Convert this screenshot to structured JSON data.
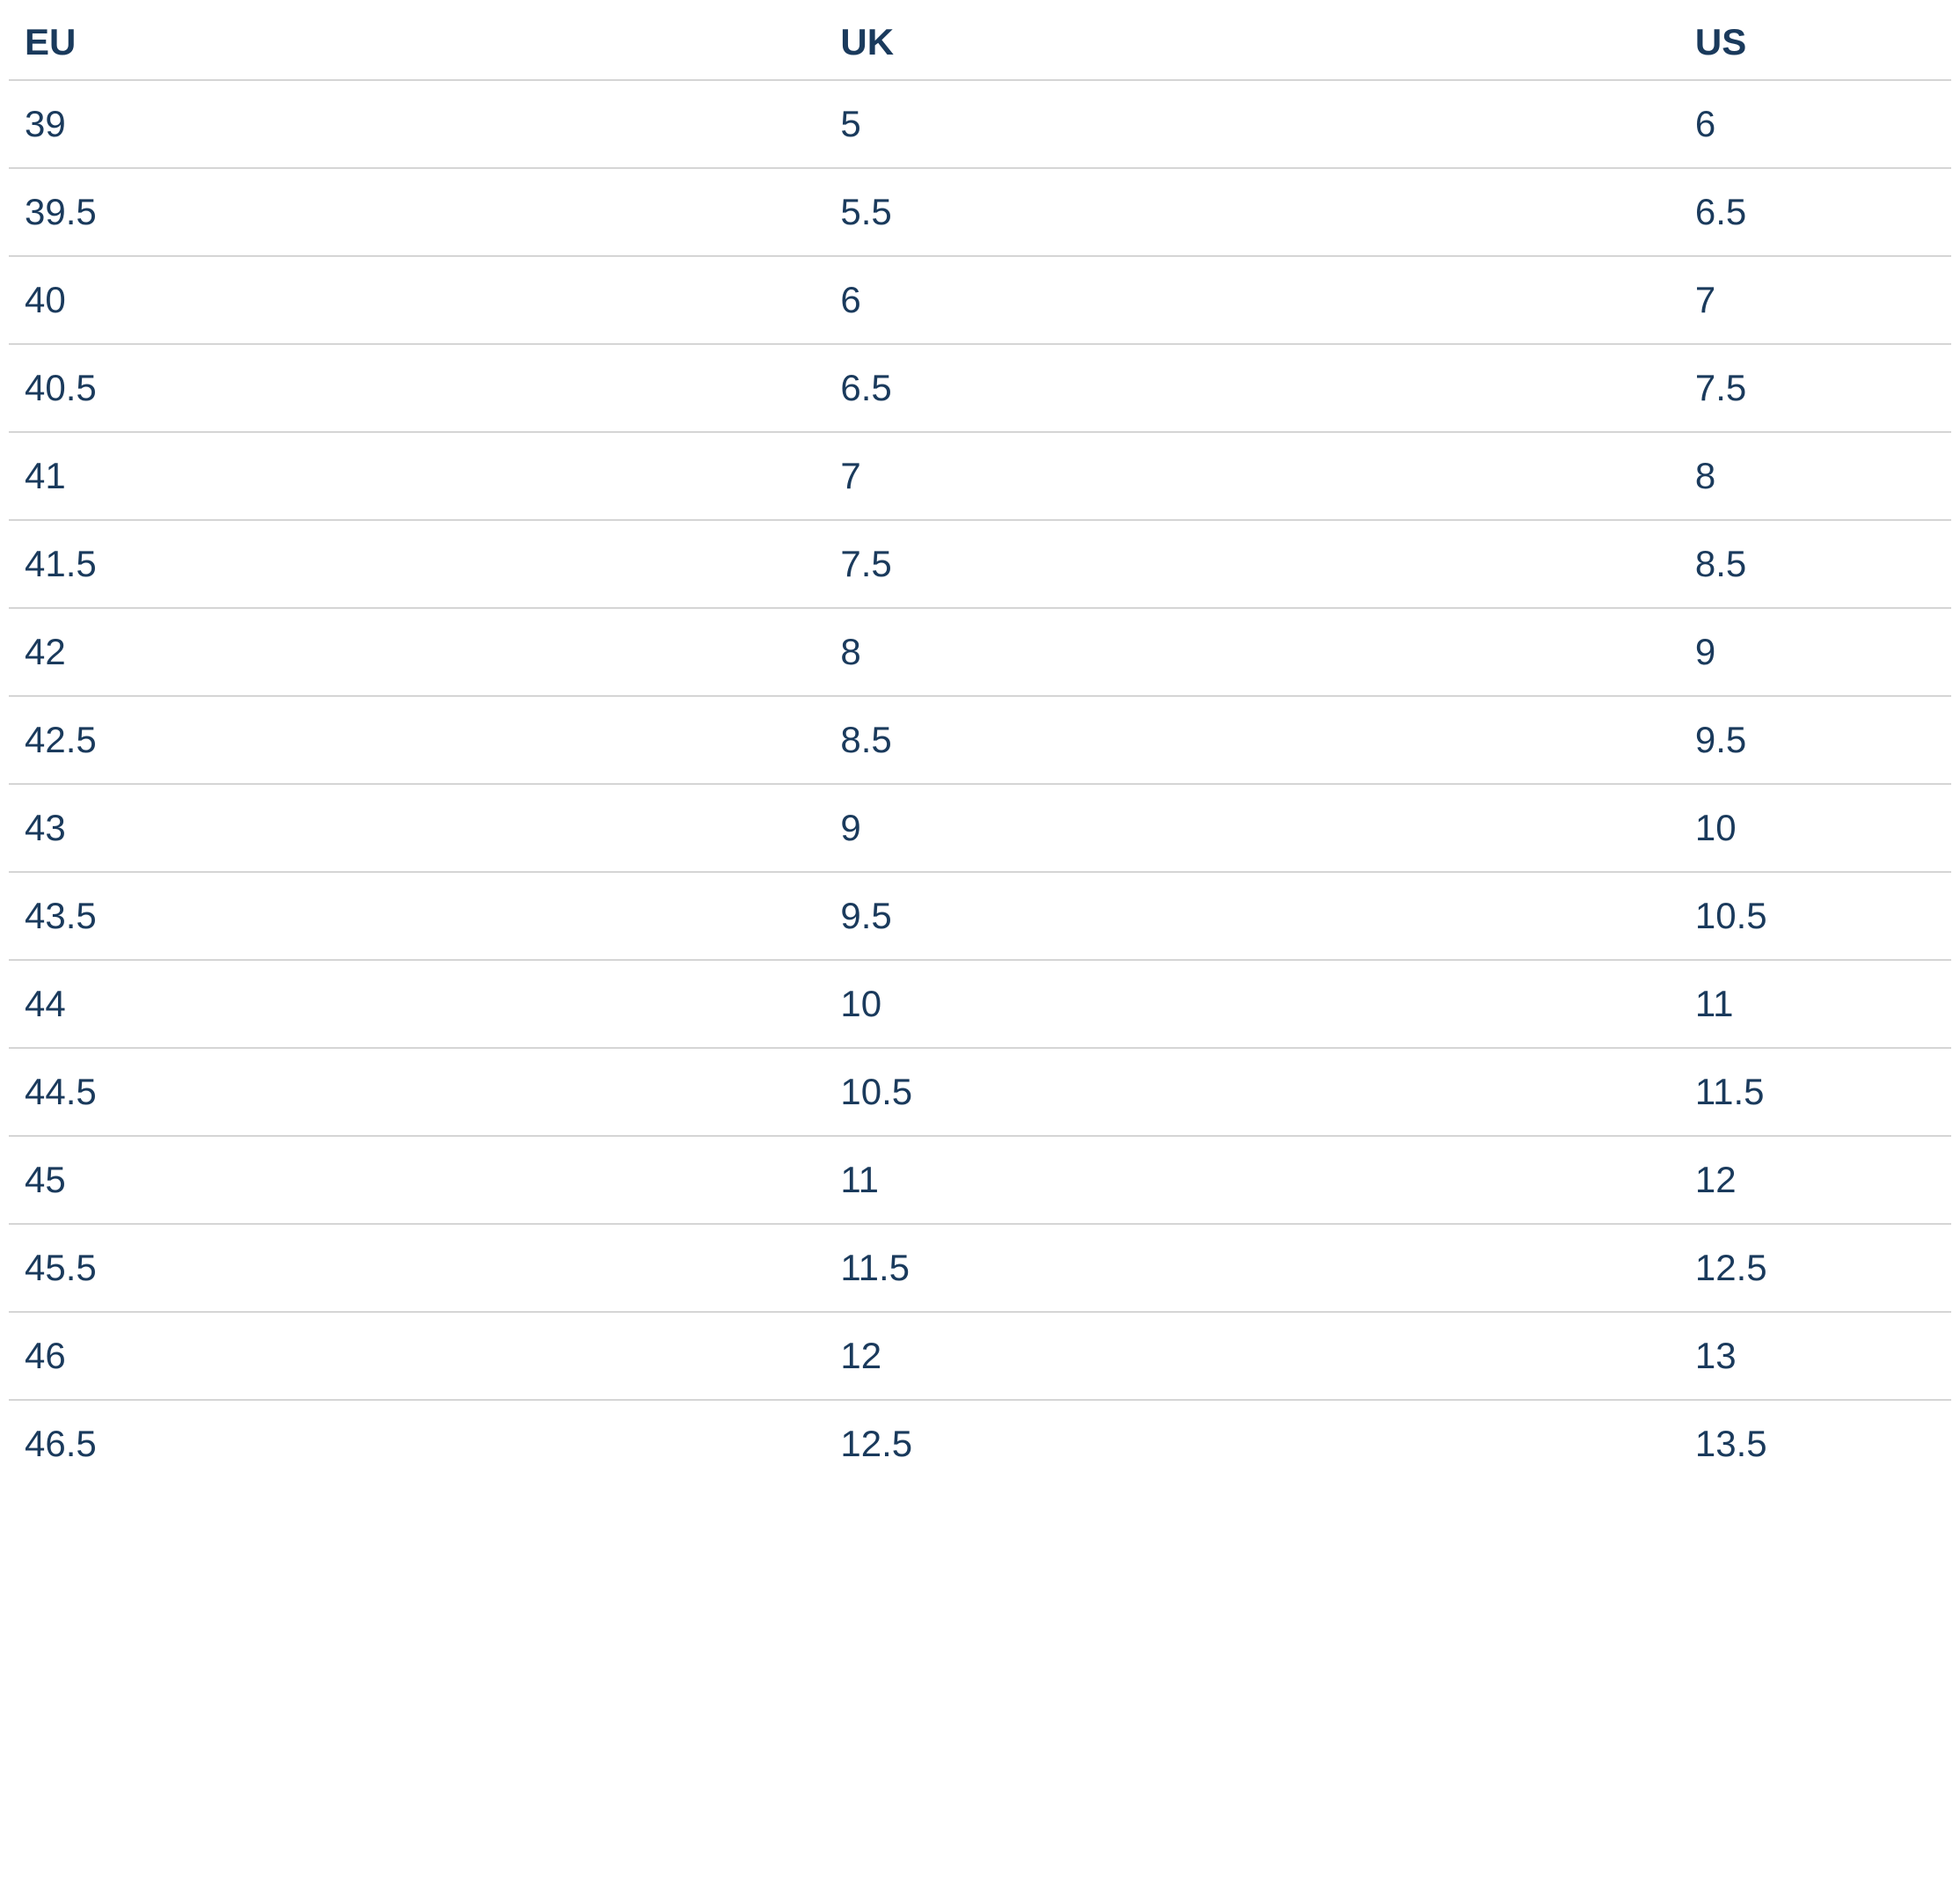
{
  "table": {
    "type": "table",
    "text_color": "#1a3a5c",
    "background_color": "#ffffff",
    "border_color": "#d5d5d5",
    "header_fontsize": 42,
    "header_fontweight": 700,
    "cell_fontsize": 42,
    "cell_fontweight": 400,
    "column_widths_pct": [
      42,
      44,
      14
    ],
    "columns": [
      "EU",
      "UK",
      "US"
    ],
    "rows": [
      [
        "39",
        "5",
        "6"
      ],
      [
        "39.5",
        "5.5",
        "6.5"
      ],
      [
        "40",
        "6",
        "7"
      ],
      [
        "40.5",
        "6.5",
        "7.5"
      ],
      [
        "41",
        "7",
        "8"
      ],
      [
        "41.5",
        "7.5",
        "8.5"
      ],
      [
        "42",
        "8",
        "9"
      ],
      [
        "42.5",
        "8.5",
        "9.5"
      ],
      [
        "43",
        "9",
        "10"
      ],
      [
        "43.5",
        "9.5",
        "10.5"
      ],
      [
        "44",
        "10",
        "11"
      ],
      [
        "44.5",
        "10.5",
        "11.5"
      ],
      [
        "45",
        "11",
        "12"
      ],
      [
        "45.5",
        "11.5",
        "12.5"
      ],
      [
        "46",
        "12",
        "13"
      ],
      [
        "46.5",
        "12.5",
        "13.5"
      ]
    ]
  }
}
